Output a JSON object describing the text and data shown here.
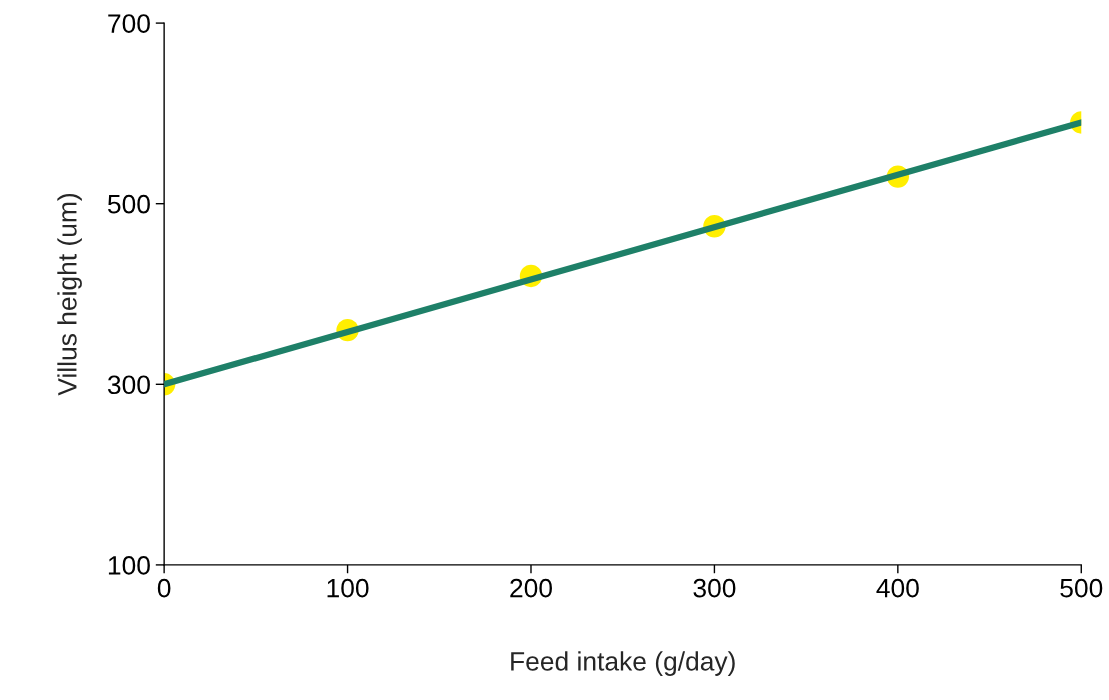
{
  "chart_data": {
    "type": "scatter",
    "xlabel": "Feed intake (g/day)",
    "ylabel": "Villus height (um)",
    "xlim": [
      0,
      500
    ],
    "xticks": [
      0,
      100,
      200,
      300,
      400,
      500
    ],
    "ylim": [
      100,
      700
    ],
    "yticks": [
      100,
      300,
      500,
      700
    ],
    "grid": false,
    "x": [
      0,
      100,
      200,
      300,
      400,
      500
    ],
    "series": [
      {
        "color": "#ffee00",
        "marker": "circle",
        "values": [
          300,
          360,
          420,
          475,
          530,
          590
        ]
      },
      {
        "type": "line",
        "color": "#1e8068",
        "x": [
          0,
          500
        ],
        "values": [
          300,
          590
        ],
        "line_style": "solid"
      }
    ]
  }
}
